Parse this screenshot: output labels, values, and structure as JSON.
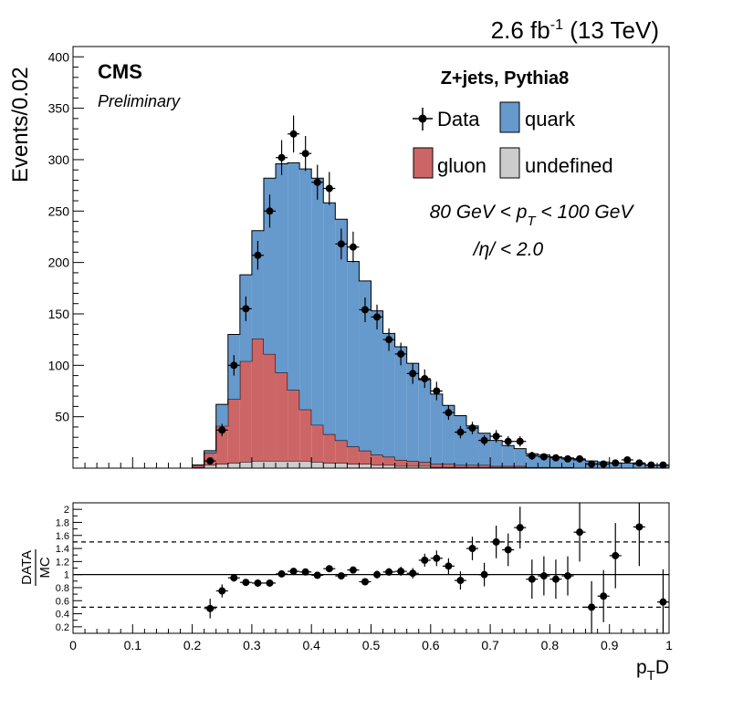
{
  "header": {
    "lumi": "2.6 fb",
    "lumi_exp": "-1",
    "energy": "(13 TeV)"
  },
  "labels": {
    "cms": "CMS",
    "preliminary": "Preliminary",
    "sample": "Z+jets, Pythia8",
    "pt_cut": "80 GeV < p",
    "pt_sub": "T",
    "pt_cut_end": " < 100 GeV",
    "eta_cut": "/η/ < 2.0"
  },
  "legend": {
    "data": "Data",
    "quark": "quark",
    "gluon": "gluon",
    "undefined": "undefined"
  },
  "colors": {
    "quark": "#6699cc",
    "gluon": "#cc6666",
    "undefined": "#cccccc",
    "data": "#000000"
  },
  "chart_data": [
    {
      "type": "stacked_histogram",
      "ylabel": "Events/0.02",
      "xlim": [
        0,
        1
      ],
      "ylim": [
        0,
        410
      ],
      "yticks": [
        50,
        100,
        150,
        200,
        250,
        300,
        350,
        400
      ],
      "bin_width": 0.02,
      "bin_edges_start": 0.2,
      "series": [
        {
          "name": "undefined",
          "values": [
            1,
            3,
            4,
            5,
            6,
            7,
            7,
            7,
            7,
            7,
            6,
            5,
            5,
            4,
            4,
            3,
            3,
            2,
            2,
            2,
            1,
            1,
            1,
            1,
            1,
            1,
            1,
            1,
            0,
            0,
            0,
            0,
            0,
            0,
            0,
            0,
            0,
            0,
            0,
            0
          ]
        },
        {
          "name": "gluon",
          "values": [
            2,
            12,
            37,
            62,
            98,
            119,
            104,
            86,
            69,
            50,
            36,
            28,
            22,
            17,
            13,
            10,
            8,
            6,
            5,
            4,
            3,
            3,
            2,
            2,
            2,
            1,
            1,
            1,
            1,
            1,
            1,
            1,
            0,
            0,
            0,
            0,
            0,
            0,
            0,
            0
          ]
        },
        {
          "name": "quark",
          "values": [
            0,
            2,
            21,
            63,
            84,
            105,
            171,
            203,
            221,
            234,
            240,
            225,
            215,
            180,
            165,
            140,
            120,
            110,
            95,
            80,
            68,
            57,
            48,
            38,
            31,
            25,
            20,
            17,
            13,
            12,
            10,
            9,
            8,
            7,
            6,
            5,
            5,
            4,
            3,
            3
          ]
        }
      ],
      "data_points": {
        "x": [
          0.23,
          0.25,
          0.27,
          0.29,
          0.31,
          0.33,
          0.35,
          0.37,
          0.39,
          0.41,
          0.43,
          0.45,
          0.47,
          0.49,
          0.51,
          0.53,
          0.55,
          0.57,
          0.59,
          0.61,
          0.63,
          0.65,
          0.67,
          0.69,
          0.71,
          0.73,
          0.75,
          0.77,
          0.79,
          0.81,
          0.83,
          0.85,
          0.87,
          0.89,
          0.91,
          0.93,
          0.95,
          0.97,
          0.99
        ],
        "y": [
          7,
          37,
          100,
          155,
          207,
          250,
          302,
          325,
          306,
          278,
          272,
          218,
          215,
          154,
          147,
          125,
          111,
          92,
          87,
          75,
          54,
          35,
          39,
          27,
          31,
          26,
          26,
          12,
          11,
          10,
          9,
          9,
          4,
          4,
          5,
          8,
          5,
          3,
          3
        ],
        "err": [
          3,
          6,
          10,
          12,
          14,
          16,
          17,
          18,
          17,
          17,
          16,
          15,
          15,
          12,
          12,
          11,
          11,
          10,
          9,
          9,
          7,
          6,
          6,
          5,
          6,
          5,
          5,
          4,
          3,
          3,
          3,
          3,
          2,
          2,
          2,
          3,
          2,
          2,
          2
        ]
      }
    },
    {
      "type": "scatter",
      "xlabel": "p",
      "xlabel_sub": "T",
      "xlabel_end": "D",
      "ylabel_num": "DATA",
      "ylabel_den": "MC",
      "xlim": [
        0,
        1
      ],
      "ylim": [
        0.1,
        2.1
      ],
      "xticks": [
        0,
        0.1,
        0.2,
        0.3,
        0.4,
        0.5,
        0.6,
        0.7,
        0.8,
        0.9,
        1
      ],
      "xtick_labels": [
        "0",
        "0.1",
        "0.2",
        "0.3",
        "0.4",
        "0.5",
        "0.6",
        "0.7",
        "0.8",
        "0.9",
        "1"
      ],
      "yticks": [
        0.2,
        0.4,
        0.6,
        0.8,
        1,
        1.2,
        1.4,
        1.6,
        1.8,
        2
      ],
      "ytick_labels": [
        "0.2",
        "0.4",
        "0.6",
        "0.8",
        "1",
        "1.2",
        "1.4",
        "1.6",
        "1.8",
        "2"
      ],
      "reference_lines": [
        1.0,
        0.5,
        1.5
      ],
      "x": [
        0.23,
        0.25,
        0.27,
        0.29,
        0.31,
        0.33,
        0.35,
        0.37,
        0.39,
        0.41,
        0.43,
        0.45,
        0.47,
        0.49,
        0.51,
        0.53,
        0.55,
        0.57,
        0.59,
        0.61,
        0.63,
        0.65,
        0.67,
        0.69,
        0.71,
        0.73,
        0.75,
        0.77,
        0.79,
        0.81,
        0.83,
        0.85,
        0.87,
        0.89,
        0.91,
        0.95,
        0.99
      ],
      "y": [
        0.48,
        0.75,
        0.95,
        0.88,
        0.87,
        0.87,
        1.01,
        1.05,
        1.04,
        0.99,
        1.09,
        0.98,
        1.07,
        0.89,
        1.0,
        1.04,
        1.05,
        1.02,
        1.22,
        1.25,
        1.13,
        0.91,
        1.4,
        1.0,
        1.5,
        1.38,
        1.72,
        0.93,
        0.98,
        0.93,
        0.98,
        1.65,
        0.5,
        0.67,
        1.29,
        1.73,
        0.58
      ],
      "err": [
        0.15,
        0.1,
        0.06,
        0.04,
        0.04,
        0.04,
        0.04,
        0.04,
        0.04,
        0.04,
        0.04,
        0.04,
        0.05,
        0.05,
        0.06,
        0.06,
        0.07,
        0.08,
        0.1,
        0.12,
        0.12,
        0.14,
        0.18,
        0.18,
        0.25,
        0.25,
        0.32,
        0.3,
        0.3,
        0.3,
        0.3,
        0.45,
        0.4,
        0.4,
        0.5,
        0.6,
        0.5
      ]
    }
  ]
}
